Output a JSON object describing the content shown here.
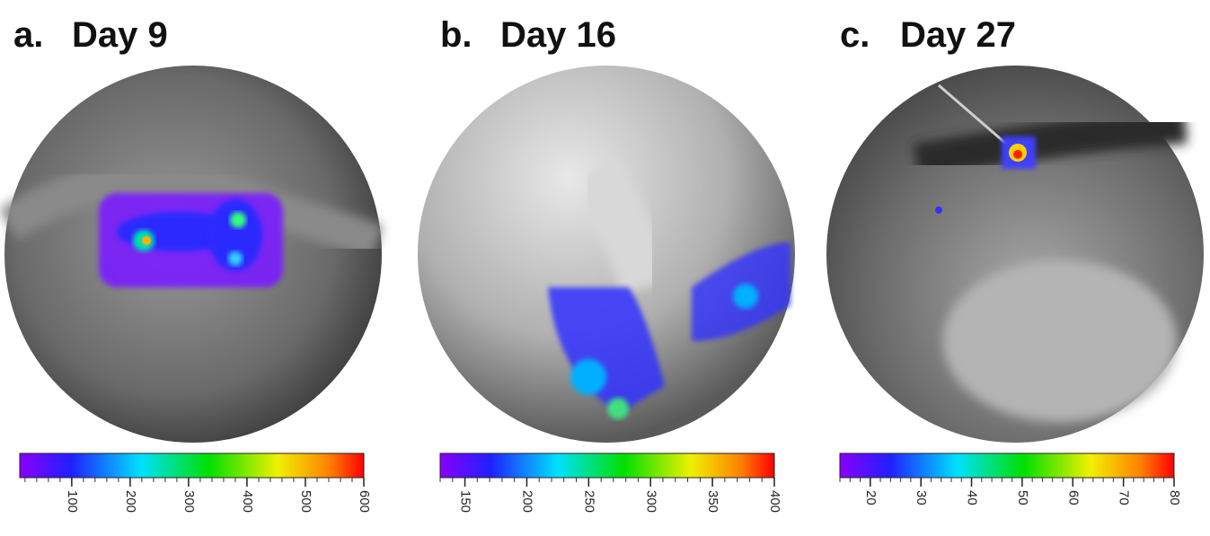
{
  "panels": [
    {
      "letter": "a.",
      "title": "Day 9",
      "colorbar": {
        "range": [
          11,
          600
        ],
        "ticks": [
          100,
          200,
          300,
          400,
          500,
          600
        ]
      }
    },
    {
      "letter": "b.",
      "title": "Day 16",
      "colorbar": {
        "range": [
          130,
          400
        ],
        "ticks": [
          150,
          200,
          250,
          300,
          350,
          400
        ]
      }
    },
    {
      "letter": "c.",
      "title": "Day 27",
      "colorbar": {
        "range": [
          14,
          80
        ],
        "ticks": [
          20,
          30,
          40,
          50,
          60,
          70,
          80
        ]
      }
    }
  ]
}
